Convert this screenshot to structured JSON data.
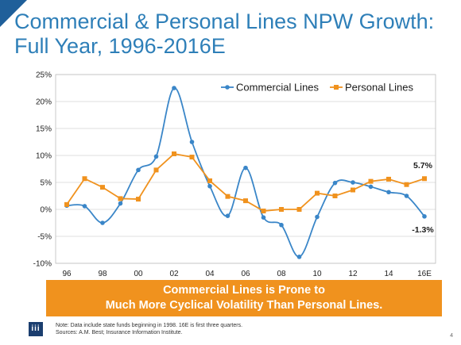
{
  "slide": {
    "title_line1": "Commercial & Personal Lines NPW Growth:",
    "title_line2": "Full Year, 1996-2016E",
    "banner_line1": "Commercial Lines is Prone to",
    "banner_line2": "Much More Cyclical Volatility Than Personal Lines.",
    "note_line1": "Note: Data include state funds beginning in 1998. 16E is first three quarters.",
    "note_line2": "Sources: A.M. Best; Insurance Information Institute.",
    "logo_text": "iii",
    "page_number": "4"
  },
  "colors": {
    "title": "#2e7fb8",
    "commercial": "#3a86c8",
    "personal": "#f0921e",
    "banner": "#f0921e"
  },
  "chart_data": {
    "type": "line",
    "x": [
      "1996",
      "1997",
      "1998",
      "1999",
      "2000",
      "2001",
      "2002",
      "2003",
      "2004",
      "2005",
      "2006",
      "2007",
      "2008",
      "2009",
      "2010",
      "2011",
      "2012",
      "2013",
      "2014",
      "2015",
      "2016E"
    ],
    "x_tick_labels": [
      "96",
      "98",
      "00",
      "02",
      "04",
      "06",
      "08",
      "10",
      "12",
      "14",
      "16E"
    ],
    "y_tick_labels": [
      "25%",
      "20%",
      "15%",
      "10%",
      "5%",
      "0%",
      "-5%",
      "-10%"
    ],
    "ylim": [
      -10,
      25
    ],
    "y_step": 5,
    "grid": true,
    "legend_position": "top-right",
    "series": [
      {
        "name": "Commercial Lines",
        "values": [
          0.7,
          0.6,
          -2.5,
          1.1,
          7.3,
          9.8,
          22.5,
          12.5,
          4.3,
          -1.2,
          7.7,
          -1.5,
          -2.9,
          -8.8,
          -1.4,
          4.9,
          5.0,
          4.2,
          3.2,
          2.5,
          -1.3
        ],
        "end_label": "-1.3%"
      },
      {
        "name": "Personal Lines",
        "values": [
          0.9,
          5.7,
          4.1,
          2.0,
          1.9,
          7.3,
          10.3,
          9.7,
          5.3,
          2.4,
          1.6,
          -0.3,
          0.0,
          0.0,
          3.0,
          2.5,
          3.6,
          5.2,
          5.6,
          4.6,
          5.7
        ],
        "end_label": "5.7%"
      }
    ]
  }
}
